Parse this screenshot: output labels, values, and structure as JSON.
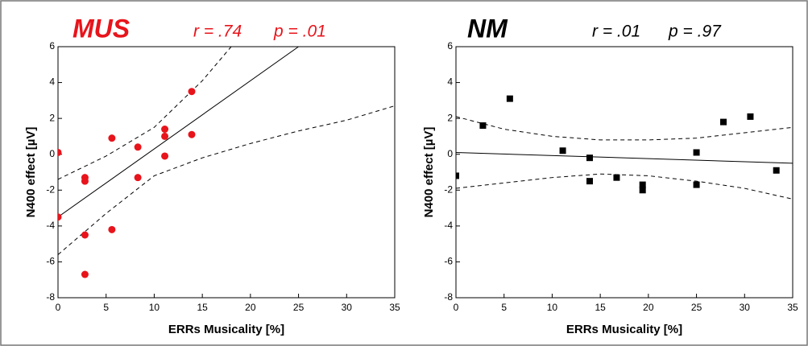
{
  "chart_data": [
    {
      "type": "scatter",
      "title": "MUS",
      "title_color": "#e8141b",
      "annotations": [
        "r = .74",
        "p = .01"
      ],
      "x_label": "ERRs Musicality [%]",
      "y_label": "N400 effect [µV]",
      "xlim": [
        0,
        35
      ],
      "xticks": [
        0,
        5,
        10,
        15,
        20,
        25,
        30,
        35
      ],
      "ylim": [
        -8,
        6
      ],
      "yticks": [
        -8,
        -6,
        -4,
        -2,
        0,
        2,
        4,
        6
      ],
      "marker": "circle",
      "color": "#e8141b",
      "x": [
        0,
        0,
        2.8,
        2.8,
        2.8,
        2.8,
        5.6,
        5.6,
        8.3,
        8.3,
        11.1,
        11.1,
        11.1,
        13.9,
        13.9
      ],
      "values": [
        0.1,
        -3.5,
        -1.3,
        -1.5,
        -4.5,
        -6.7,
        0.9,
        -4.2,
        0.4,
        -1.3,
        1.4,
        1.0,
        -0.1,
        3.5,
        1.1
      ],
      "fit": {
        "x": [
          0,
          25
        ],
        "values": [
          -3.5,
          6
        ]
      },
      "band_upper": {
        "x": [
          0,
          5,
          10,
          15,
          18
        ],
        "values": [
          -1.4,
          -0.1,
          1.5,
          4.1,
          6
        ]
      },
      "band_lower": {
        "x": [
          0,
          5,
          10,
          15,
          20,
          25,
          30,
          35
        ],
        "values": [
          -5.6,
          -3.3,
          -1.2,
          -0.2,
          0.6,
          1.3,
          1.9,
          2.7
        ]
      }
    },
    {
      "type": "scatter",
      "title": "NM",
      "title_color": "#000000",
      "annotations": [
        "r = .01",
        "p = .97"
      ],
      "x_label": "ERRs Musicality [%]",
      "y_label": "N400 effect [µV]",
      "xlim": [
        0,
        35
      ],
      "xticks": [
        0,
        5,
        10,
        15,
        20,
        25,
        30,
        35
      ],
      "ylim": [
        -8,
        6
      ],
      "yticks": [
        -8,
        -6,
        -4,
        -2,
        0,
        2,
        4,
        6
      ],
      "marker": "square",
      "color": "#000000",
      "x": [
        0,
        2.8,
        5.6,
        11.1,
        13.9,
        13.9,
        16.7,
        19.4,
        19.4,
        25,
        25,
        27.8,
        30.6,
        33.3
      ],
      "values": [
        -1.2,
        1.6,
        3.1,
        0.2,
        -0.2,
        -1.5,
        -1.3,
        -1.7,
        -2.0,
        0.1,
        -1.7,
        1.8,
        2.1,
        -0.9
      ],
      "fit": {
        "x": [
          0,
          35
        ],
        "values": [
          0.1,
          -0.5
        ]
      },
      "band_upper": {
        "x": [
          0,
          5,
          10,
          15,
          20,
          25,
          30,
          35
        ],
        "values": [
          2.1,
          1.4,
          1.0,
          0.8,
          0.8,
          0.9,
          1.2,
          1.5
        ]
      },
      "band_lower": {
        "x": [
          0,
          5,
          10,
          15,
          20,
          25,
          30,
          35
        ],
        "values": [
          -1.9,
          -1.6,
          -1.3,
          -1.1,
          -1.2,
          -1.5,
          -1.9,
          -2.5
        ]
      }
    }
  ]
}
